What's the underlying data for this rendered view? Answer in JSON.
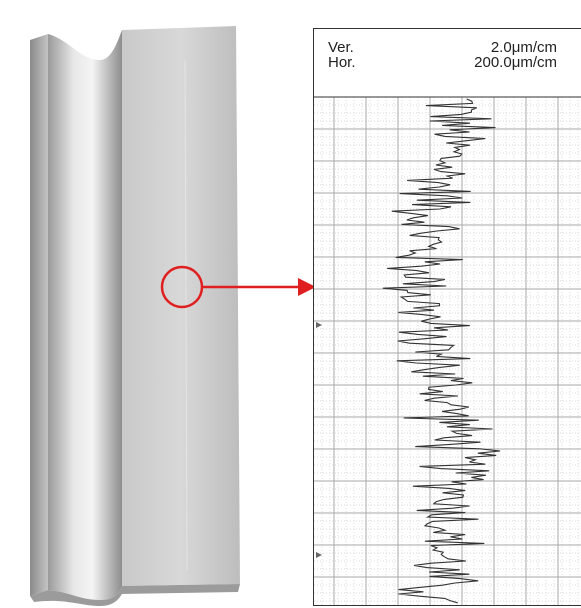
{
  "header": {
    "vertical_label": "Ver.",
    "vertical_scale": "2.0μm/cm",
    "horizontal_label": "Hor.",
    "horizontal_scale": "200.0μm/cm"
  }
}
